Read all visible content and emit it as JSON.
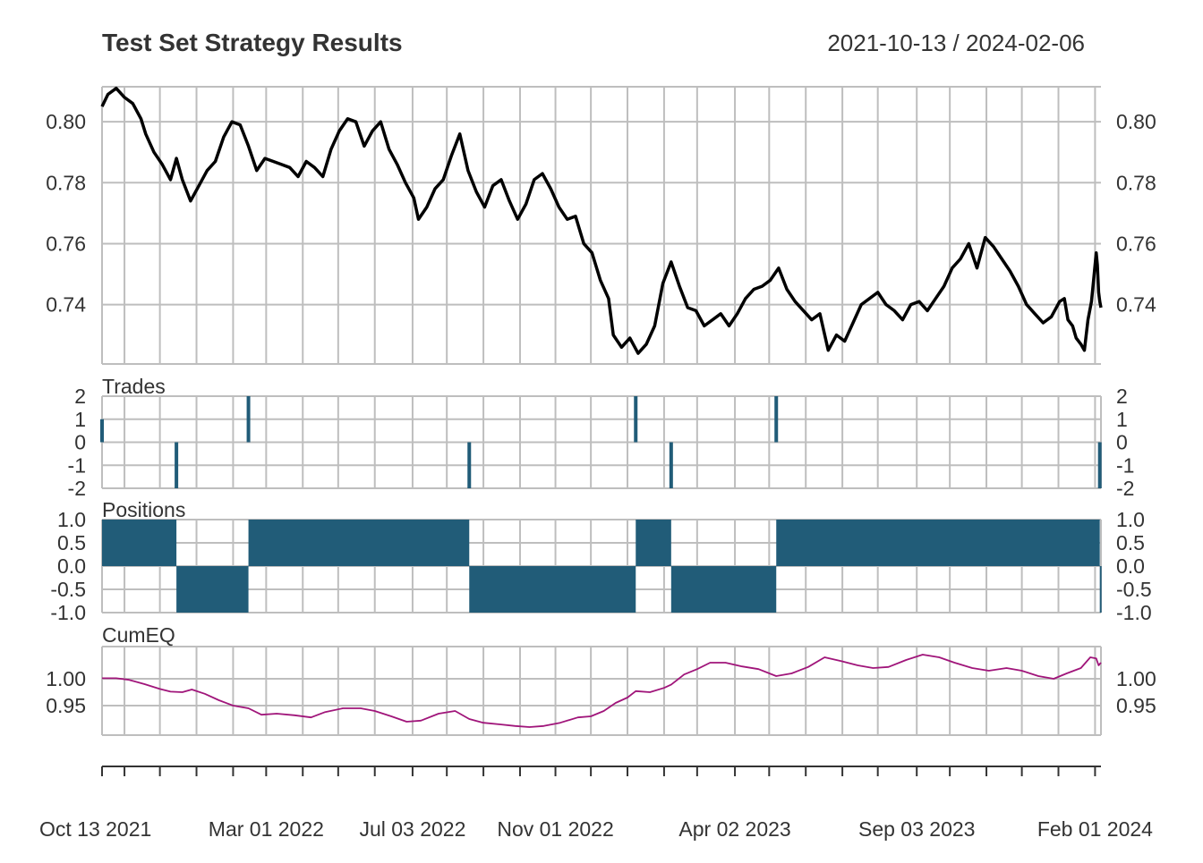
{
  "title": "Test Set Strategy Results",
  "date_range": "2021-10-13 / 2024-02-06",
  "colors": {
    "price": "#000000",
    "bars": "#215C78",
    "cumeq": "#A0157A",
    "grid": "#BEBEBE",
    "frame": "#BEBEBE",
    "text": "#333333"
  },
  "x_axis": {
    "start": "2021-10-13",
    "end": "2024-02-06",
    "tick_labels": [
      {
        "date": "2021-10-13",
        "label": "Oct 13 2021"
      },
      {
        "date": "2022-03-01",
        "label": "Mar 01 2022"
      },
      {
        "date": "2022-07-03",
        "label": "Jul 03 2022"
      },
      {
        "date": "2022-11-01",
        "label": "Nov 01 2022"
      },
      {
        "date": "2023-04-02",
        "label": "Apr 02 2023"
      },
      {
        "date": "2023-09-03",
        "label": "Sep 03 2023"
      },
      {
        "date": "2024-02-01",
        "label": "Feb 01 2024"
      }
    ],
    "grid_dates": [
      "2021-10-13",
      "2021-11-01",
      "2021-12-01",
      "2022-01-01",
      "2022-02-01",
      "2022-03-01",
      "2022-04-01",
      "2022-05-01",
      "2022-06-01",
      "2022-07-03",
      "2022-08-01",
      "2022-09-01",
      "2022-10-02",
      "2022-11-01",
      "2022-12-01",
      "2023-01-01",
      "2023-02-01",
      "2023-03-01",
      "2023-04-02",
      "2023-05-01",
      "2023-06-01",
      "2023-07-02",
      "2023-08-01",
      "2023-09-03",
      "2023-10-01",
      "2023-11-01",
      "2023-12-01",
      "2024-01-01",
      "2024-02-01"
    ]
  },
  "chart_data": [
    {
      "type": "line",
      "name": "price",
      "title": "Test Set Strategy Results",
      "ylim": [
        0.7205,
        0.8115
      ],
      "y_ticks": [
        "0.74",
        "0.76",
        "0.78",
        "0.80"
      ],
      "points": [
        [
          "2021-10-13",
          0.805
        ],
        [
          "2021-10-18",
          0.809
        ],
        [
          "2021-10-25",
          0.811
        ],
        [
          "2021-11-01",
          0.808
        ],
        [
          "2021-11-08",
          0.806
        ],
        [
          "2021-11-15",
          0.801
        ],
        [
          "2021-11-19",
          0.796
        ],
        [
          "2021-11-26",
          0.79
        ],
        [
          "2021-12-03",
          0.786
        ],
        [
          "2021-12-10",
          0.781
        ],
        [
          "2021-12-15",
          0.788
        ],
        [
          "2021-12-20",
          0.781
        ],
        [
          "2021-12-27",
          0.774
        ],
        [
          "2022-01-03",
          0.779
        ],
        [
          "2022-01-10",
          0.784
        ],
        [
          "2022-01-17",
          0.787
        ],
        [
          "2022-01-24",
          0.795
        ],
        [
          "2022-01-31",
          0.8
        ],
        [
          "2022-02-07",
          0.799
        ],
        [
          "2022-02-14",
          0.792
        ],
        [
          "2022-02-21",
          0.784
        ],
        [
          "2022-02-28",
          0.788
        ],
        [
          "2022-03-07",
          0.787
        ],
        [
          "2022-03-14",
          0.786
        ],
        [
          "2022-03-21",
          0.785
        ],
        [
          "2022-03-28",
          0.782
        ],
        [
          "2022-04-04",
          0.787
        ],
        [
          "2022-04-11",
          0.785
        ],
        [
          "2022-04-18",
          0.782
        ],
        [
          "2022-04-25",
          0.791
        ],
        [
          "2022-05-02",
          0.797
        ],
        [
          "2022-05-09",
          0.801
        ],
        [
          "2022-05-16",
          0.8
        ],
        [
          "2022-05-23",
          0.792
        ],
        [
          "2022-05-30",
          0.797
        ],
        [
          "2022-06-06",
          0.8
        ],
        [
          "2022-06-13",
          0.791
        ],
        [
          "2022-06-20",
          0.786
        ],
        [
          "2022-06-27",
          0.78
        ],
        [
          "2022-07-04",
          0.775
        ],
        [
          "2022-07-08",
          0.768
        ],
        [
          "2022-07-15",
          0.772
        ],
        [
          "2022-07-22",
          0.778
        ],
        [
          "2022-07-29",
          0.781
        ],
        [
          "2022-08-05",
          0.789
        ],
        [
          "2022-08-12",
          0.796
        ],
        [
          "2022-08-19",
          0.784
        ],
        [
          "2022-08-26",
          0.777
        ],
        [
          "2022-09-02",
          0.772
        ],
        [
          "2022-09-09",
          0.779
        ],
        [
          "2022-09-16",
          0.781
        ],
        [
          "2022-09-23",
          0.774
        ],
        [
          "2022-09-30",
          0.768
        ],
        [
          "2022-10-07",
          0.773
        ],
        [
          "2022-10-14",
          0.781
        ],
        [
          "2022-10-21",
          0.783
        ],
        [
          "2022-10-28",
          0.778
        ],
        [
          "2022-11-04",
          0.772
        ],
        [
          "2022-11-11",
          0.768
        ],
        [
          "2022-11-18",
          0.769
        ],
        [
          "2022-11-25",
          0.76
        ],
        [
          "2022-12-02",
          0.757
        ],
        [
          "2022-12-09",
          0.748
        ],
        [
          "2022-12-16",
          0.742
        ],
        [
          "2022-12-20",
          0.73
        ],
        [
          "2022-12-27",
          0.726
        ],
        [
          "2023-01-03",
          0.729
        ],
        [
          "2023-01-10",
          0.724
        ],
        [
          "2023-01-17",
          0.727
        ],
        [
          "2023-01-24",
          0.733
        ],
        [
          "2023-01-31",
          0.747
        ],
        [
          "2023-02-07",
          0.754
        ],
        [
          "2023-02-14",
          0.746
        ],
        [
          "2023-02-21",
          0.739
        ],
        [
          "2023-02-28",
          0.738
        ],
        [
          "2023-03-07",
          0.733
        ],
        [
          "2023-03-14",
          0.735
        ],
        [
          "2023-03-21",
          0.737
        ],
        [
          "2023-03-28",
          0.733
        ],
        [
          "2023-04-04",
          0.737
        ],
        [
          "2023-04-11",
          0.742
        ],
        [
          "2023-04-18",
          0.745
        ],
        [
          "2023-04-25",
          0.746
        ],
        [
          "2023-05-02",
          0.748
        ],
        [
          "2023-05-09",
          0.752
        ],
        [
          "2023-05-16",
          0.745
        ],
        [
          "2023-05-23",
          0.741
        ],
        [
          "2023-05-30",
          0.738
        ],
        [
          "2023-06-06",
          0.735
        ],
        [
          "2023-06-13",
          0.737
        ],
        [
          "2023-06-20",
          0.725
        ],
        [
          "2023-06-27",
          0.73
        ],
        [
          "2023-07-04",
          0.728
        ],
        [
          "2023-07-11",
          0.734
        ],
        [
          "2023-07-18",
          0.74
        ],
        [
          "2023-07-25",
          0.742
        ],
        [
          "2023-08-01",
          0.744
        ],
        [
          "2023-08-08",
          0.74
        ],
        [
          "2023-08-15",
          0.738
        ],
        [
          "2023-08-22",
          0.735
        ],
        [
          "2023-08-29",
          0.74
        ],
        [
          "2023-09-05",
          0.741
        ],
        [
          "2023-09-12",
          0.738
        ],
        [
          "2023-09-19",
          0.742
        ],
        [
          "2023-09-26",
          0.746
        ],
        [
          "2023-10-03",
          0.752
        ],
        [
          "2023-10-10",
          0.755
        ],
        [
          "2023-10-17",
          0.76
        ],
        [
          "2023-10-24",
          0.752
        ],
        [
          "2023-10-31",
          0.762
        ],
        [
          "2023-11-07",
          0.759
        ],
        [
          "2023-11-14",
          0.755
        ],
        [
          "2023-11-21",
          0.751
        ],
        [
          "2023-11-28",
          0.746
        ],
        [
          "2023-12-05",
          0.74
        ],
        [
          "2023-12-12",
          0.737
        ],
        [
          "2023-12-19",
          0.734
        ],
        [
          "2023-12-26",
          0.736
        ],
        [
          "2024-01-02",
          0.741
        ],
        [
          "2024-01-06",
          0.742
        ],
        [
          "2024-01-09",
          0.735
        ],
        [
          "2024-01-13",
          0.733
        ],
        [
          "2024-01-16",
          0.729
        ],
        [
          "2024-01-20",
          0.727
        ],
        [
          "2024-01-23",
          0.725
        ],
        [
          "2024-01-26",
          0.735
        ],
        [
          "2024-01-29",
          0.741
        ],
        [
          "2024-01-31",
          0.749
        ],
        [
          "2024-02-02",
          0.757
        ],
        [
          "2024-02-03",
          0.753
        ],
        [
          "2024-02-04",
          0.744
        ],
        [
          "2024-02-05",
          0.741
        ],
        [
          "2024-02-06",
          0.739
        ]
      ]
    },
    {
      "type": "bar",
      "name": "Trades",
      "title": "Trades",
      "ylim": [
        -2,
        2
      ],
      "y_ticks": [
        "-2",
        "-1",
        "0",
        "1",
        "2"
      ],
      "points": [
        [
          "2021-10-13",
          1
        ],
        [
          "2021-12-15",
          -2
        ],
        [
          "2022-02-14",
          2
        ],
        [
          "2022-08-20",
          -2
        ],
        [
          "2023-01-08",
          2
        ],
        [
          "2023-02-07",
          -2
        ],
        [
          "2023-05-07",
          2
        ],
        [
          "2024-02-05",
          -2
        ]
      ]
    },
    {
      "type": "area",
      "name": "Positions",
      "title": "Positions",
      "ylim": [
        -1,
        1
      ],
      "y_ticks": [
        "-1.0",
        "-0.5",
        "0.0",
        "0.5",
        "1.0"
      ],
      "segments": [
        [
          "2021-10-13",
          "2021-12-15",
          1
        ],
        [
          "2021-12-15",
          "2022-02-14",
          -1
        ],
        [
          "2022-02-14",
          "2022-08-20",
          1
        ],
        [
          "2022-08-20",
          "2023-01-08",
          -1
        ],
        [
          "2023-01-08",
          "2023-02-07",
          1
        ],
        [
          "2023-02-07",
          "2023-05-07",
          -1
        ],
        [
          "2023-05-07",
          "2024-02-05",
          1
        ],
        [
          "2024-02-05",
          "2024-02-06",
          -1
        ]
      ]
    },
    {
      "type": "line",
      "name": "CumEQ",
      "title": "CumEQ",
      "ylim": [
        0.895,
        1.06
      ],
      "y_ticks": [
        "0.95",
        "1.00"
      ],
      "points": [
        [
          "2021-10-13",
          1.001
        ],
        [
          "2021-10-25",
          1.001
        ],
        [
          "2021-11-05",
          0.998
        ],
        [
          "2021-11-18",
          0.99
        ],
        [
          "2021-12-01",
          0.981
        ],
        [
          "2021-12-10",
          0.976
        ],
        [
          "2021-12-20",
          0.975
        ],
        [
          "2021-12-28",
          0.98
        ],
        [
          "2022-01-08",
          0.972
        ],
        [
          "2022-01-20",
          0.96
        ],
        [
          "2022-02-01",
          0.95
        ],
        [
          "2022-02-14",
          0.945
        ],
        [
          "2022-02-25",
          0.933
        ],
        [
          "2022-03-10",
          0.935
        ],
        [
          "2022-03-25",
          0.932
        ],
        [
          "2022-04-08",
          0.928
        ],
        [
          "2022-04-20",
          0.938
        ],
        [
          "2022-05-05",
          0.945
        ],
        [
          "2022-05-20",
          0.945
        ],
        [
          "2022-06-01",
          0.94
        ],
        [
          "2022-06-15",
          0.93
        ],
        [
          "2022-06-28",
          0.92
        ],
        [
          "2022-07-10",
          0.922
        ],
        [
          "2022-07-25",
          0.935
        ],
        [
          "2022-08-08",
          0.94
        ],
        [
          "2022-08-20",
          0.925
        ],
        [
          "2022-09-01",
          0.918
        ],
        [
          "2022-09-15",
          0.915
        ],
        [
          "2022-09-28",
          0.912
        ],
        [
          "2022-10-10",
          0.91
        ],
        [
          "2022-10-22",
          0.912
        ],
        [
          "2022-11-05",
          0.918
        ],
        [
          "2022-11-20",
          0.928
        ],
        [
          "2022-12-01",
          0.93
        ],
        [
          "2022-12-12",
          0.94
        ],
        [
          "2022-12-22",
          0.955
        ],
        [
          "2023-01-01",
          0.965
        ],
        [
          "2023-01-08",
          0.977
        ],
        [
          "2023-01-20",
          0.975
        ],
        [
          "2023-02-01",
          0.983
        ],
        [
          "2023-02-07",
          0.989
        ],
        [
          "2023-02-18",
          1.008
        ],
        [
          "2023-03-01",
          1.018
        ],
        [
          "2023-03-12",
          1.03
        ],
        [
          "2023-03-25",
          1.03
        ],
        [
          "2023-04-08",
          1.023
        ],
        [
          "2023-04-22",
          1.018
        ],
        [
          "2023-05-07",
          1.005
        ],
        [
          "2023-05-20",
          1.01
        ],
        [
          "2023-06-03",
          1.022
        ],
        [
          "2023-06-17",
          1.04
        ],
        [
          "2023-07-01",
          1.033
        ],
        [
          "2023-07-15",
          1.025
        ],
        [
          "2023-07-28",
          1.02
        ],
        [
          "2023-08-10",
          1.022
        ],
        [
          "2023-08-25",
          1.035
        ],
        [
          "2023-09-08",
          1.045
        ],
        [
          "2023-09-22",
          1.04
        ],
        [
          "2023-10-05",
          1.03
        ],
        [
          "2023-10-20",
          1.02
        ],
        [
          "2023-11-03",
          1.015
        ],
        [
          "2023-11-18",
          1.02
        ],
        [
          "2023-12-01",
          1.015
        ],
        [
          "2023-12-15",
          1.005
        ],
        [
          "2023-12-28",
          1.0
        ],
        [
          "2024-01-08",
          1.01
        ],
        [
          "2024-01-20",
          1.02
        ],
        [
          "2024-01-28",
          1.04
        ],
        [
          "2024-02-02",
          1.038
        ],
        [
          "2024-02-04",
          1.025
        ],
        [
          "2024-02-06",
          1.03
        ]
      ]
    }
  ]
}
